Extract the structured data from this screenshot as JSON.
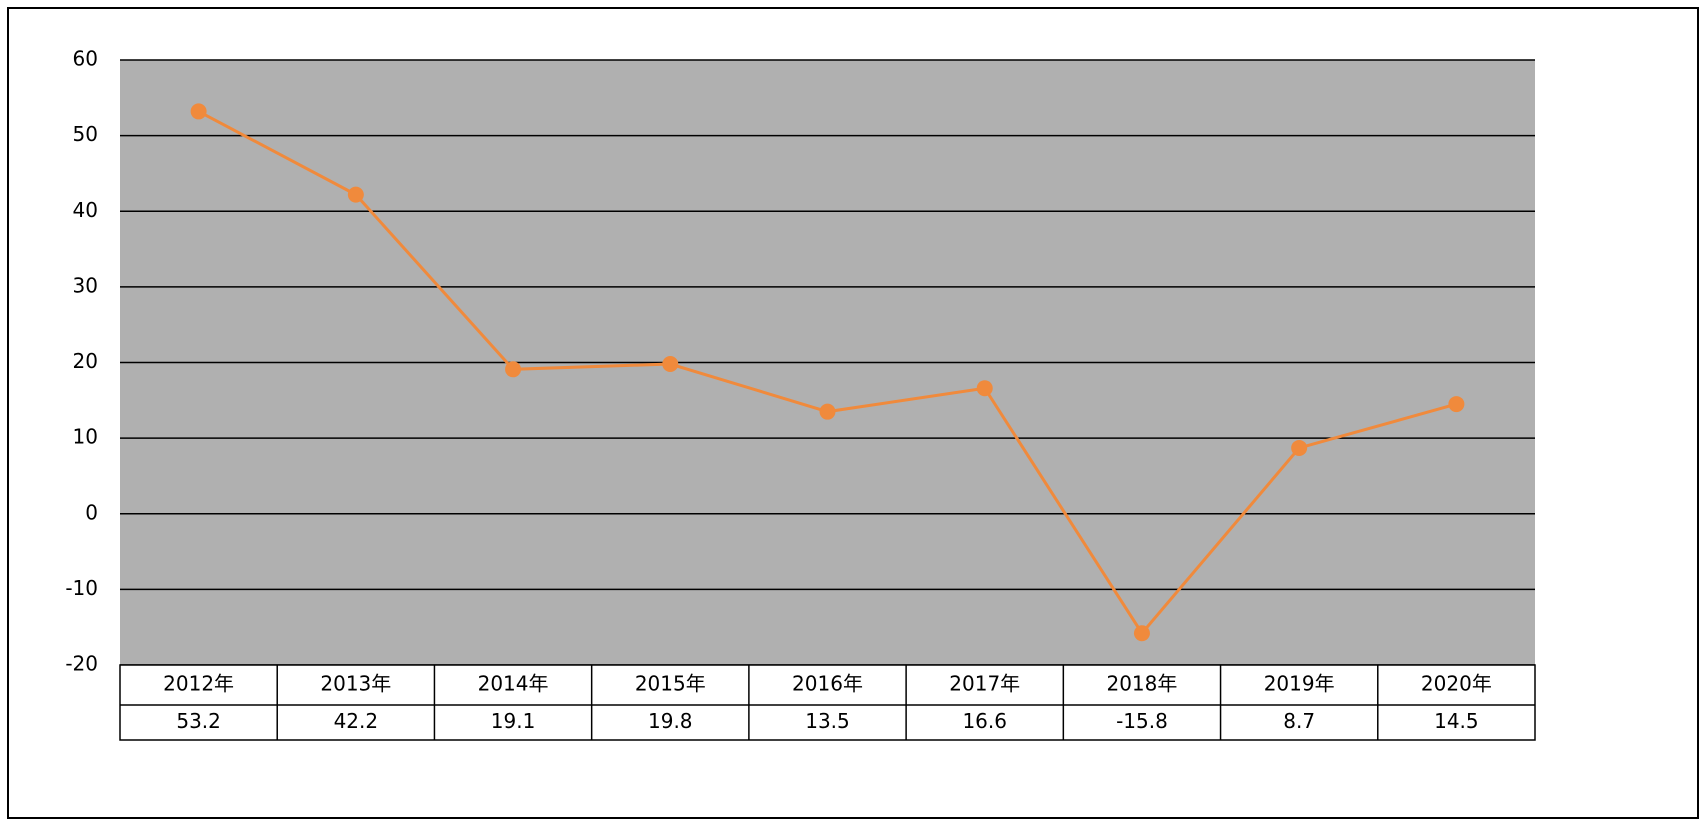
{
  "chart_data": {
    "type": "line",
    "categories": [
      "2012年",
      "2013年",
      "2014年",
      "2015年",
      "2016年",
      "2017年",
      "2018年",
      "2019年",
      "2020年"
    ],
    "values": [
      53.2,
      42.2,
      19.1,
      19.8,
      13.5,
      16.6,
      -15.8,
      8.7,
      14.5
    ],
    "color": "#f08a3c",
    "ylim": [
      -20,
      60
    ],
    "yticks": [
      -20,
      -10,
      0,
      10,
      20,
      30,
      40,
      50,
      60
    ],
    "grid": true
  }
}
